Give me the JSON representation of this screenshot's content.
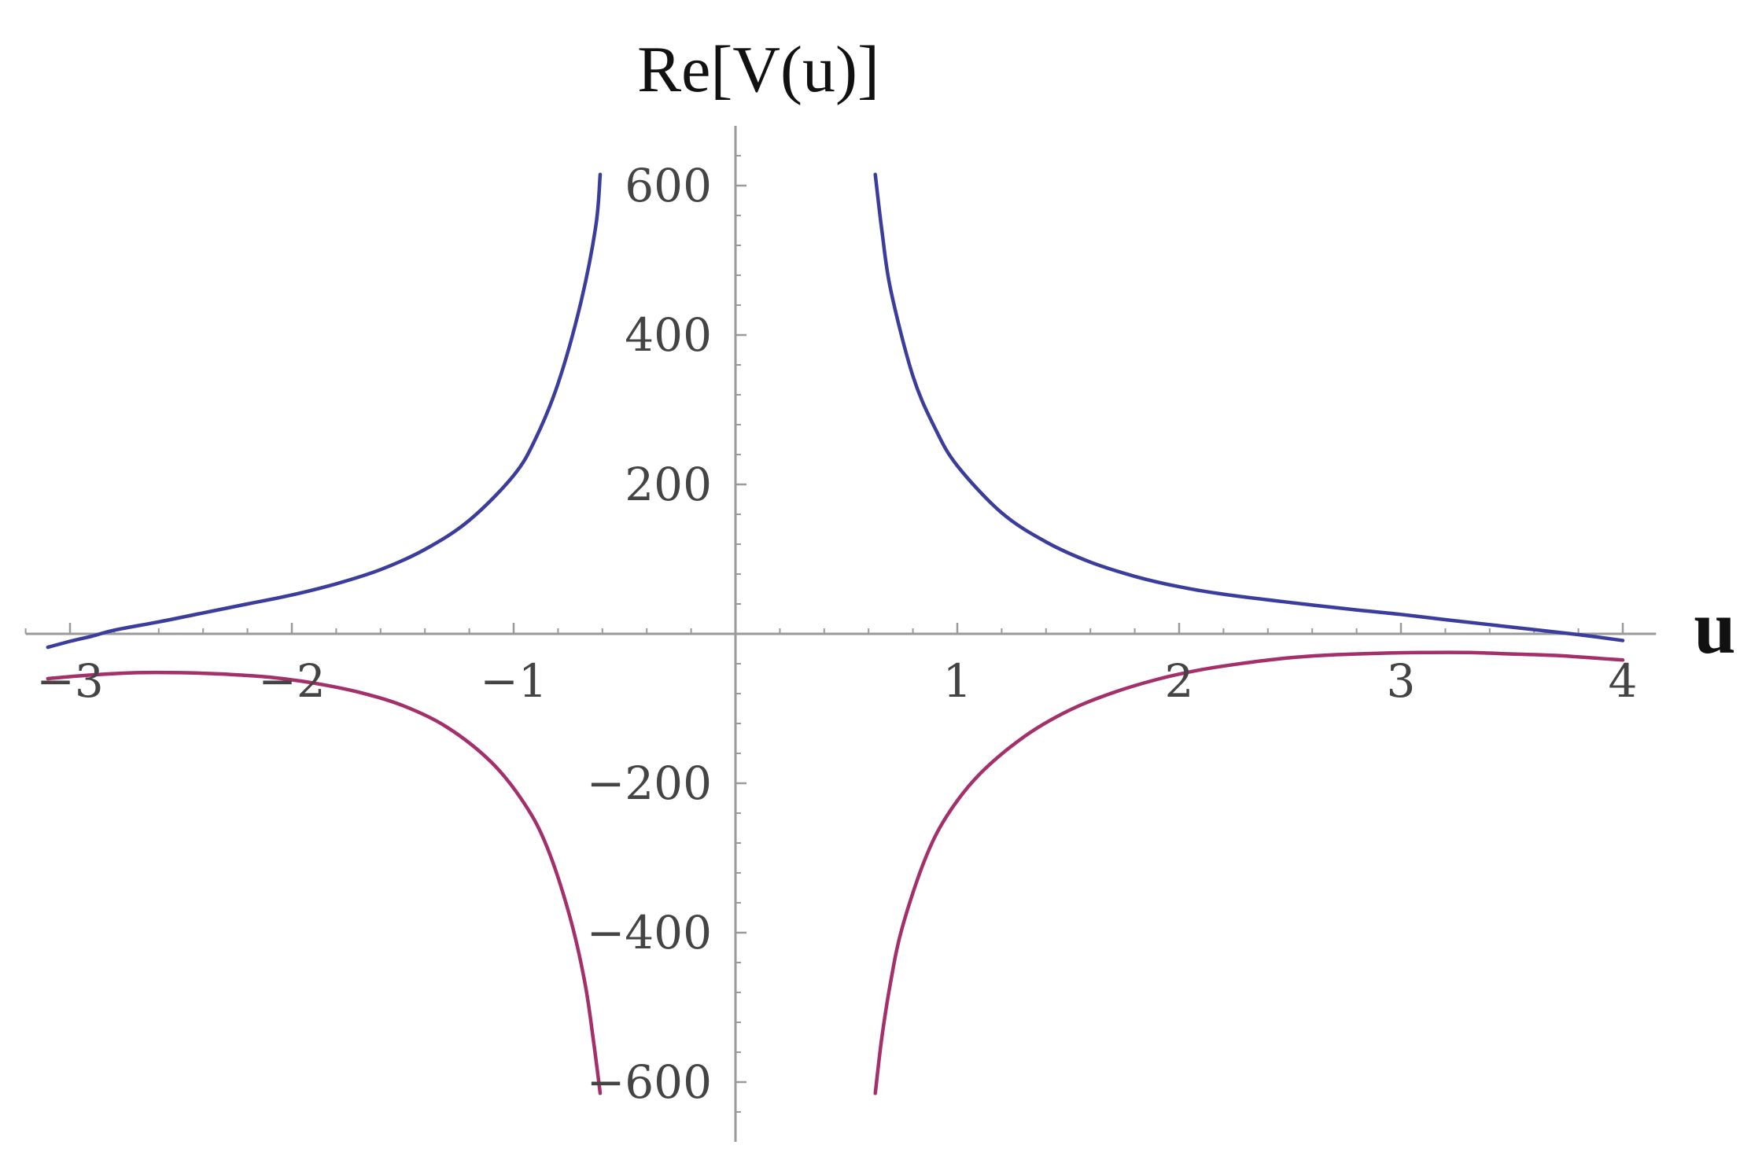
{
  "chart_data": {
    "type": "line",
    "title": "",
    "xlabel": "u",
    "ylabel": "Re[V(u)]",
    "xlim": [
      -3.2,
      4.15
    ],
    "ylim": [
      -680,
      680
    ],
    "x_ticks": [
      -3,
      -2,
      -1,
      1,
      2,
      3,
      4
    ],
    "x_tick_labels": [
      "−3",
      "−2",
      "−1",
      "1",
      "2",
      "3",
      "4"
    ],
    "y_ticks": [
      -600,
      -400,
      -200,
      200,
      400,
      600
    ],
    "y_tick_labels": [
      "−600",
      "−400",
      "−200",
      "200",
      "400",
      "600"
    ],
    "grid": false,
    "legend": "none",
    "series": [
      {
        "color": "#3b3d9c",
        "segments": [
          [
            [
              -3.1,
              -18
            ],
            [
              -3.0,
              -10
            ],
            [
              -2.9,
              -3
            ],
            [
              -2.8,
              5
            ],
            [
              -2.6,
              16
            ],
            [
              -2.4,
              28
            ],
            [
              -2.2,
              40
            ],
            [
              -2.0,
              52
            ],
            [
              -1.8,
              67
            ],
            [
              -1.6,
              86
            ],
            [
              -1.4,
              113
            ],
            [
              -1.2,
              152
            ],
            [
              -1.0,
              212
            ],
            [
              -0.9,
              262
            ],
            [
              -0.8,
              335
            ],
            [
              -0.7,
              440
            ],
            [
              -0.63,
              545
            ],
            [
              -0.61,
              615
            ]
          ],
          [
            [
              0.63,
              615
            ],
            [
              0.66,
              540
            ],
            [
              0.7,
              460
            ],
            [
              0.8,
              345
            ],
            [
              0.9,
              275
            ],
            [
              1.0,
              225
            ],
            [
              1.2,
              162
            ],
            [
              1.4,
              123
            ],
            [
              1.6,
              96
            ],
            [
              1.8,
              77
            ],
            [
              2.0,
              63
            ],
            [
              2.2,
              53
            ],
            [
              2.5,
              42
            ],
            [
              2.8,
              32
            ],
            [
              3.0,
              26
            ],
            [
              3.2,
              19
            ],
            [
              3.5,
              9
            ],
            [
              3.8,
              -1
            ],
            [
              4.0,
              -9
            ]
          ]
        ]
      },
      {
        "color": "#a3306a",
        "segments": [
          [
            [
              -3.1,
              -60
            ],
            [
              -2.9,
              -55
            ],
            [
              -2.7,
              -52
            ],
            [
              -2.5,
              -52
            ],
            [
              -2.3,
              -54
            ],
            [
              -2.1,
              -58
            ],
            [
              -1.9,
              -66
            ],
            [
              -1.7,
              -78
            ],
            [
              -1.5,
              -96
            ],
            [
              -1.3,
              -125
            ],
            [
              -1.1,
              -172
            ],
            [
              -0.95,
              -228
            ],
            [
              -0.85,
              -285
            ],
            [
              -0.75,
              -375
            ],
            [
              -0.68,
              -465
            ],
            [
              -0.64,
              -545
            ],
            [
              -0.61,
              -615
            ]
          ],
          [
            [
              0.63,
              -615
            ],
            [
              0.66,
              -540
            ],
            [
              0.7,
              -465
            ],
            [
              0.75,
              -395
            ],
            [
              0.85,
              -305
            ],
            [
              0.95,
              -245
            ],
            [
              1.1,
              -188
            ],
            [
              1.3,
              -138
            ],
            [
              1.5,
              -103
            ],
            [
              1.7,
              -79
            ],
            [
              1.9,
              -61
            ],
            [
              2.1,
              -48
            ],
            [
              2.3,
              -39
            ],
            [
              2.5,
              -32
            ],
            [
              2.7,
              -28
            ],
            [
              2.9,
              -26
            ],
            [
              3.1,
              -25
            ],
            [
              3.3,
              -25
            ],
            [
              3.5,
              -27
            ],
            [
              3.7,
              -29
            ],
            [
              4.0,
              -35
            ]
          ]
        ]
      }
    ]
  }
}
